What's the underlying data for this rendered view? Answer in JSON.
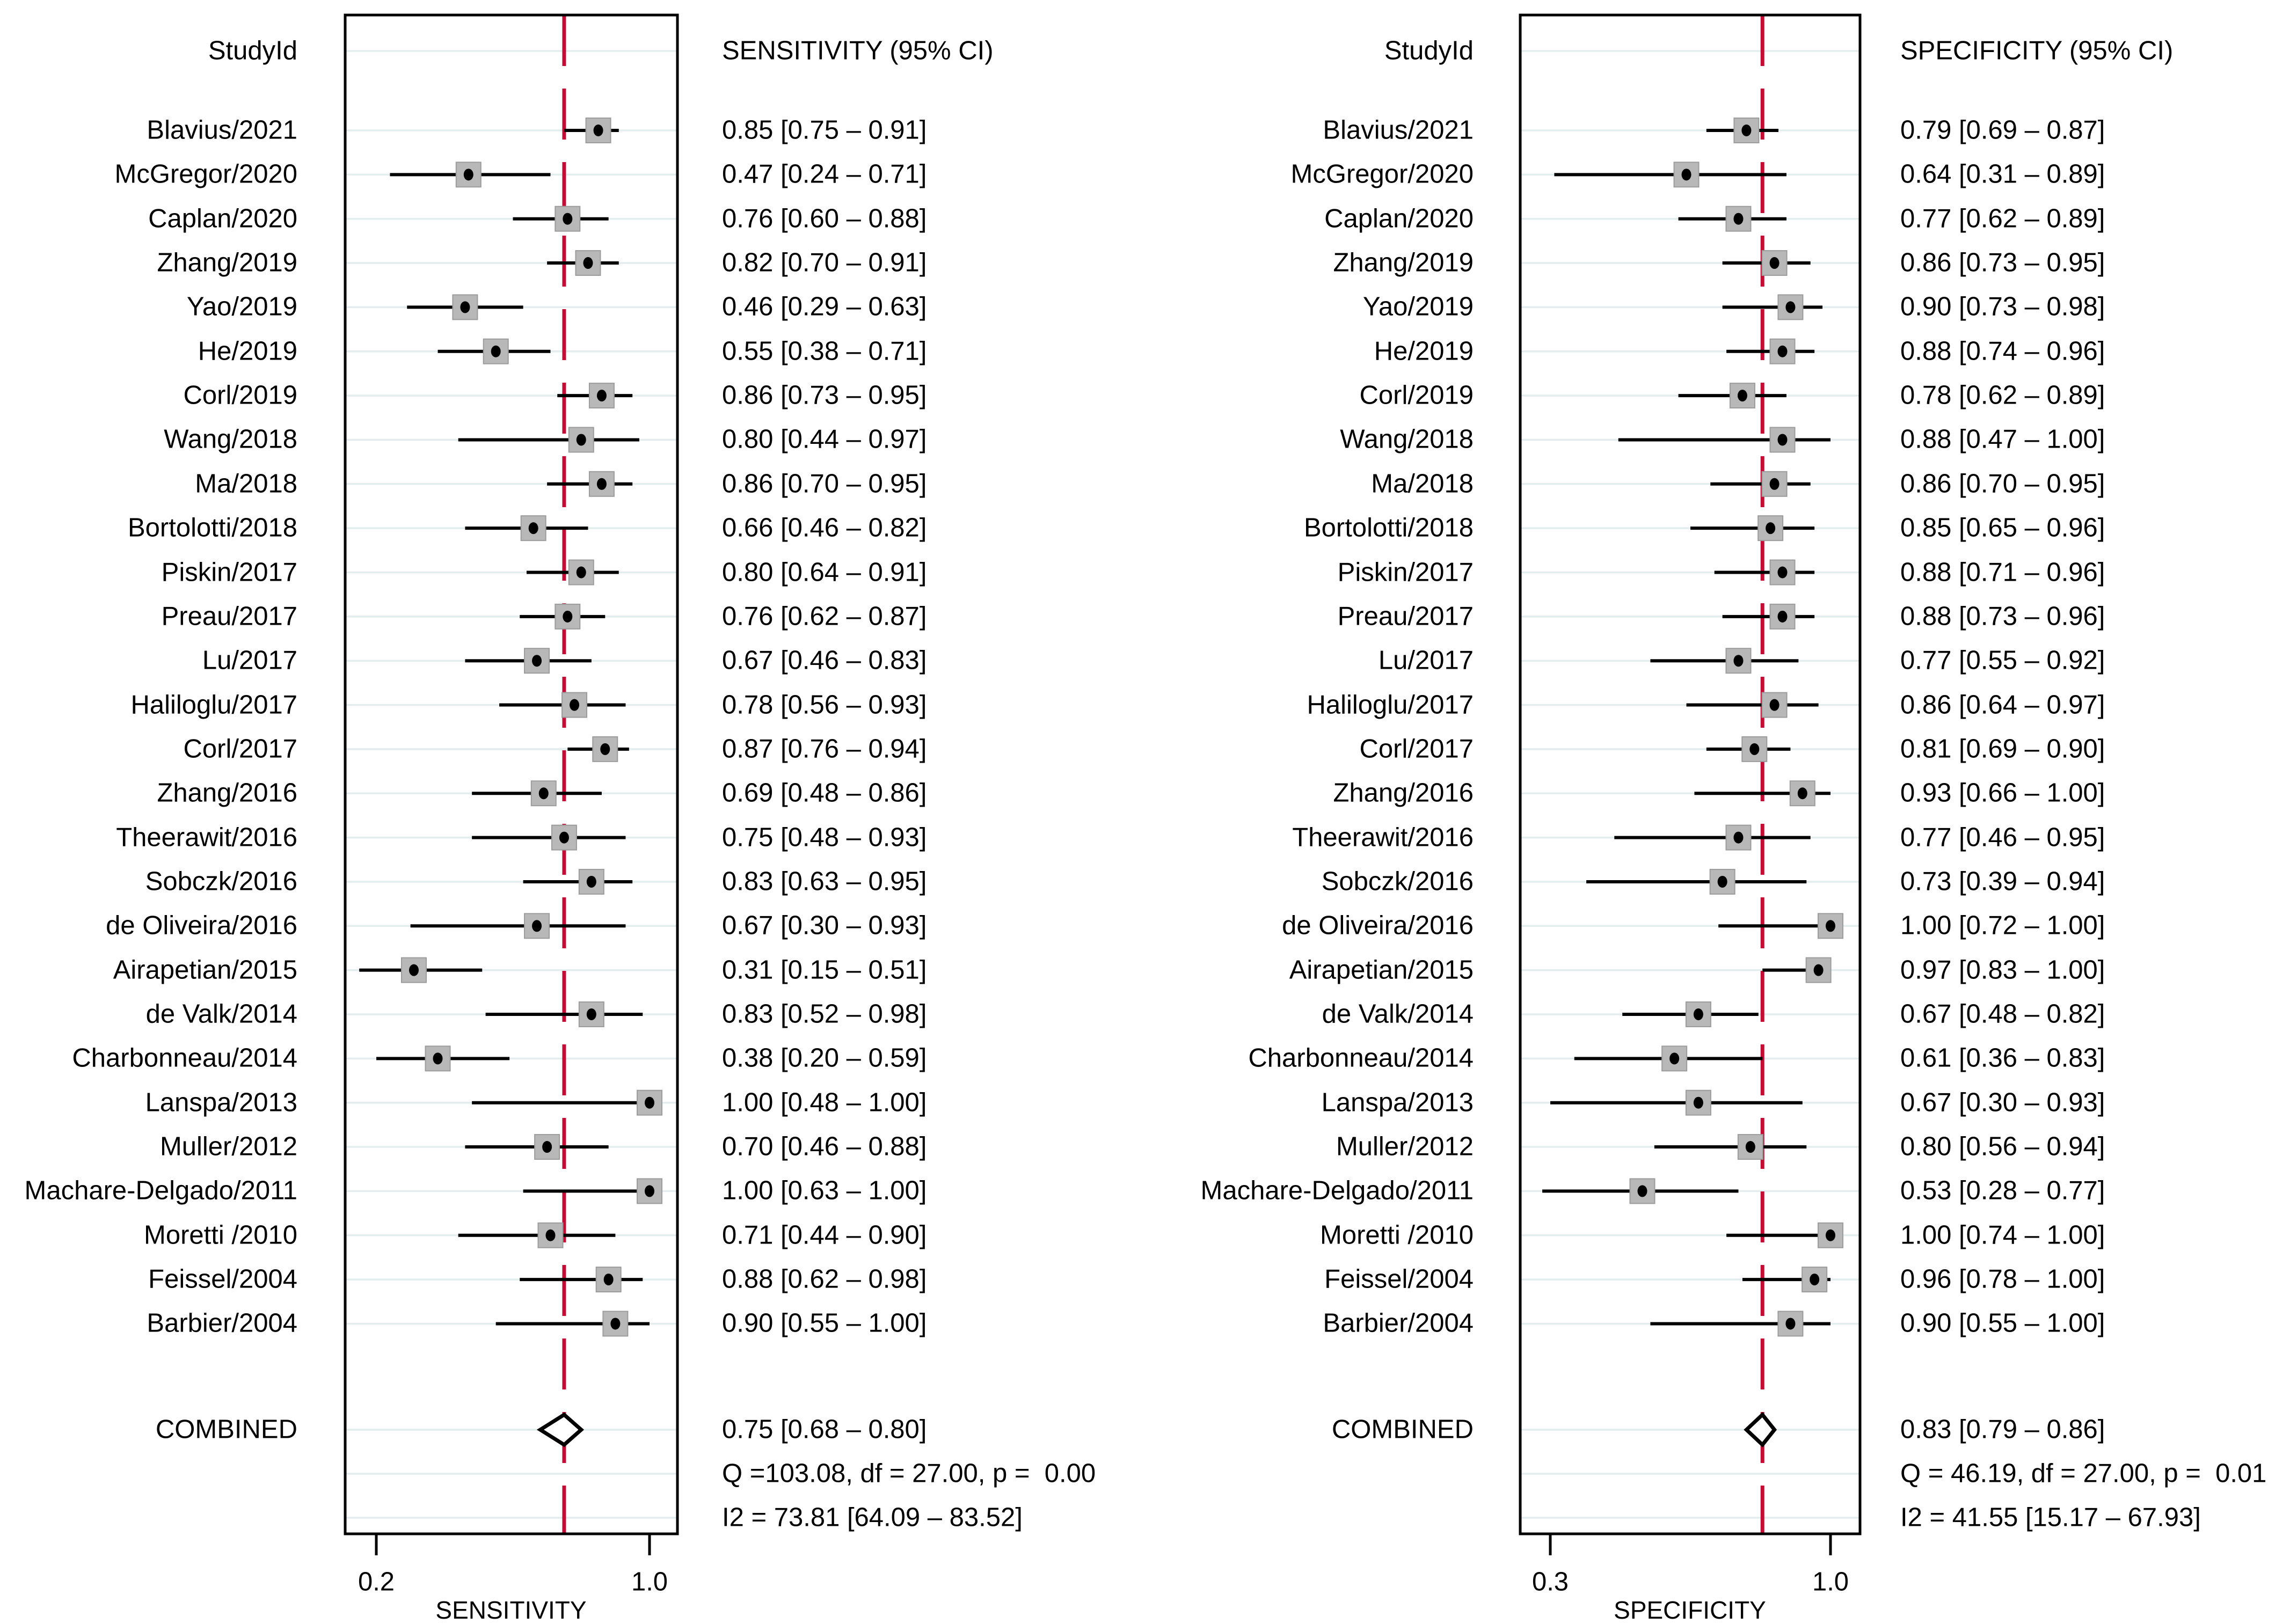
{
  "colors": {
    "reference_line": "#C50C34",
    "marker_fill": "#b8b8b8",
    "marker_edge": "#9c9c9c",
    "marker_dot": "#000000",
    "gridline": "#e3edee",
    "border": "#000000",
    "text": "#000000",
    "background": "#ffffff"
  },
  "chart_data": [
    {
      "type": "forest",
      "name": "sensitivity",
      "column_header": "StudyId",
      "value_header": "SENSITIVITY (95% CI)",
      "axis_label": "SENSITIVITY",
      "axis_ticks": [
        {
          "value": 0.2,
          "label": "0.2"
        },
        {
          "value": 1.0,
          "label": "1.0"
        }
      ],
      "xlim": [
        0.11,
        1.08
      ],
      "grid": true,
      "reference_line": 0.75,
      "studies": [
        {
          "id": "Blavius/2021",
          "estimate": 0.85,
          "ci_low": 0.75,
          "ci_high": 0.91,
          "label": "0.85 [0.75 – 0.91]"
        },
        {
          "id": "McGregor/2020",
          "estimate": 0.47,
          "ci_low": 0.24,
          "ci_high": 0.71,
          "label": "0.47 [0.24 – 0.71]"
        },
        {
          "id": "Caplan/2020",
          "estimate": 0.76,
          "ci_low": 0.6,
          "ci_high": 0.88,
          "label": "0.76 [0.60 – 0.88]"
        },
        {
          "id": "Zhang/2019",
          "estimate": 0.82,
          "ci_low": 0.7,
          "ci_high": 0.91,
          "label": "0.82 [0.70 – 0.91]"
        },
        {
          "id": "Yao/2019",
          "estimate": 0.46,
          "ci_low": 0.29,
          "ci_high": 0.63,
          "label": "0.46 [0.29 – 0.63]"
        },
        {
          "id": "He/2019",
          "estimate": 0.55,
          "ci_low": 0.38,
          "ci_high": 0.71,
          "label": "0.55 [0.38 – 0.71]"
        },
        {
          "id": "Corl/2019",
          "estimate": 0.86,
          "ci_low": 0.73,
          "ci_high": 0.95,
          "label": "0.86 [0.73 – 0.95]"
        },
        {
          "id": "Wang/2018",
          "estimate": 0.8,
          "ci_low": 0.44,
          "ci_high": 0.97,
          "label": "0.80 [0.44 – 0.97]"
        },
        {
          "id": "Ma/2018",
          "estimate": 0.86,
          "ci_low": 0.7,
          "ci_high": 0.95,
          "label": "0.86 [0.70 – 0.95]"
        },
        {
          "id": "Bortolotti/2018",
          "estimate": 0.66,
          "ci_low": 0.46,
          "ci_high": 0.82,
          "label": "0.66 [0.46 – 0.82]"
        },
        {
          "id": "Piskin/2017",
          "estimate": 0.8,
          "ci_low": 0.64,
          "ci_high": 0.91,
          "label": "0.80 [0.64 – 0.91]"
        },
        {
          "id": "Preau/2017",
          "estimate": 0.76,
          "ci_low": 0.62,
          "ci_high": 0.87,
          "label": "0.76 [0.62 – 0.87]"
        },
        {
          "id": "Lu/2017",
          "estimate": 0.67,
          "ci_low": 0.46,
          "ci_high": 0.83,
          "label": "0.67 [0.46 – 0.83]"
        },
        {
          "id": "Haliloglu/2017",
          "estimate": 0.78,
          "ci_low": 0.56,
          "ci_high": 0.93,
          "label": "0.78 [0.56 – 0.93]"
        },
        {
          "id": "Corl/2017",
          "estimate": 0.87,
          "ci_low": 0.76,
          "ci_high": 0.94,
          "label": "0.87 [0.76 – 0.94]"
        },
        {
          "id": "Zhang/2016",
          "estimate": 0.69,
          "ci_low": 0.48,
          "ci_high": 0.86,
          "label": "0.69 [0.48 – 0.86]"
        },
        {
          "id": "Theerawit/2016",
          "estimate": 0.75,
          "ci_low": 0.48,
          "ci_high": 0.93,
          "label": "0.75 [0.48 – 0.93]"
        },
        {
          "id": "Sobczk/2016",
          "estimate": 0.83,
          "ci_low": 0.63,
          "ci_high": 0.95,
          "label": "0.83 [0.63 – 0.95]"
        },
        {
          "id": "de Oliveira/2016",
          "estimate": 0.67,
          "ci_low": 0.3,
          "ci_high": 0.93,
          "label": "0.67 [0.30 – 0.93]"
        },
        {
          "id": "Airapetian/2015",
          "estimate": 0.31,
          "ci_low": 0.15,
          "ci_high": 0.51,
          "label": "0.31 [0.15 – 0.51]"
        },
        {
          "id": "de Valk/2014",
          "estimate": 0.83,
          "ci_low": 0.52,
          "ci_high": 0.98,
          "label": "0.83 [0.52 – 0.98]"
        },
        {
          "id": "Charbonneau/2014",
          "estimate": 0.38,
          "ci_low": 0.2,
          "ci_high": 0.59,
          "label": "0.38 [0.20 – 0.59]"
        },
        {
          "id": "Lanspa/2013",
          "estimate": 1.0,
          "ci_low": 0.48,
          "ci_high": 1.0,
          "label": "1.00 [0.48 – 1.00]"
        },
        {
          "id": "Muller/2012",
          "estimate": 0.7,
          "ci_low": 0.46,
          "ci_high": 0.88,
          "label": "0.70 [0.46 – 0.88]"
        },
        {
          "id": "Machare-Delgado/2011",
          "estimate": 1.0,
          "ci_low": 0.63,
          "ci_high": 1.0,
          "label": "1.00 [0.63 – 1.00]"
        },
        {
          "id": "Moretti /2010",
          "estimate": 0.71,
          "ci_low": 0.44,
          "ci_high": 0.9,
          "label": "0.71 [0.44 – 0.90]"
        },
        {
          "id": "Feissel/2004",
          "estimate": 0.88,
          "ci_low": 0.62,
          "ci_high": 0.98,
          "label": "0.88 [0.62 – 0.98]"
        },
        {
          "id": "Barbier/2004",
          "estimate": 0.9,
          "ci_low": 0.55,
          "ci_high": 1.0,
          "label": "0.90 [0.55 – 1.00]"
        }
      ],
      "combined": {
        "id": "COMBINED",
        "estimate": 0.75,
        "ci_low": 0.68,
        "ci_high": 0.8,
        "label": "0.75 [0.68 – 0.80]"
      },
      "heterogeneity": {
        "q_line": "Q =103.08, df = 27.00, p =  0.00",
        "i2_line": "I2 = 73.81 [64.09 – 83.52]"
      }
    },
    {
      "type": "forest",
      "name": "specificity",
      "column_header": "StudyId",
      "value_header": "SPECIFICITY (95% CI)",
      "axis_label": "SPECIFICITY",
      "axis_ticks": [
        {
          "value": 0.3,
          "label": "0.3"
        },
        {
          "value": 1.0,
          "label": "1.0"
        }
      ],
      "xlim": [
        0.22,
        1.08
      ],
      "grid": true,
      "reference_line": 0.83,
      "studies": [
        {
          "id": "Blavius/2021",
          "estimate": 0.79,
          "ci_low": 0.69,
          "ci_high": 0.87,
          "label": "0.79 [0.69 – 0.87]"
        },
        {
          "id": "McGregor/2020",
          "estimate": 0.64,
          "ci_low": 0.31,
          "ci_high": 0.89,
          "label": "0.64 [0.31 – 0.89]"
        },
        {
          "id": "Caplan/2020",
          "estimate": 0.77,
          "ci_low": 0.62,
          "ci_high": 0.89,
          "label": "0.77 [0.62 – 0.89]"
        },
        {
          "id": "Zhang/2019",
          "estimate": 0.86,
          "ci_low": 0.73,
          "ci_high": 0.95,
          "label": "0.86 [0.73 – 0.95]"
        },
        {
          "id": "Yao/2019",
          "estimate": 0.9,
          "ci_low": 0.73,
          "ci_high": 0.98,
          "label": "0.90 [0.73 – 0.98]"
        },
        {
          "id": "He/2019",
          "estimate": 0.88,
          "ci_low": 0.74,
          "ci_high": 0.96,
          "label": "0.88 [0.74 – 0.96]"
        },
        {
          "id": "Corl/2019",
          "estimate": 0.78,
          "ci_low": 0.62,
          "ci_high": 0.89,
          "label": "0.78 [0.62 – 0.89]"
        },
        {
          "id": "Wang/2018",
          "estimate": 0.88,
          "ci_low": 0.47,
          "ci_high": 1.0,
          "label": "0.88 [0.47 – 1.00]"
        },
        {
          "id": "Ma/2018",
          "estimate": 0.86,
          "ci_low": 0.7,
          "ci_high": 0.95,
          "label": "0.86 [0.70 – 0.95]"
        },
        {
          "id": "Bortolotti/2018",
          "estimate": 0.85,
          "ci_low": 0.65,
          "ci_high": 0.96,
          "label": "0.85 [0.65 – 0.96]"
        },
        {
          "id": "Piskin/2017",
          "estimate": 0.88,
          "ci_low": 0.71,
          "ci_high": 0.96,
          "label": "0.88 [0.71 – 0.96]"
        },
        {
          "id": "Preau/2017",
          "estimate": 0.88,
          "ci_low": 0.73,
          "ci_high": 0.96,
          "label": "0.88 [0.73 – 0.96]"
        },
        {
          "id": "Lu/2017",
          "estimate": 0.77,
          "ci_low": 0.55,
          "ci_high": 0.92,
          "label": "0.77 [0.55 – 0.92]"
        },
        {
          "id": "Haliloglu/2017",
          "estimate": 0.86,
          "ci_low": 0.64,
          "ci_high": 0.97,
          "label": "0.86 [0.64 – 0.97]"
        },
        {
          "id": "Corl/2017",
          "estimate": 0.81,
          "ci_low": 0.69,
          "ci_high": 0.9,
          "label": "0.81 [0.69 – 0.90]"
        },
        {
          "id": "Zhang/2016",
          "estimate": 0.93,
          "ci_low": 0.66,
          "ci_high": 1.0,
          "label": "0.93 [0.66 – 1.00]"
        },
        {
          "id": "Theerawit/2016",
          "estimate": 0.77,
          "ci_low": 0.46,
          "ci_high": 0.95,
          "label": "0.77 [0.46 – 0.95]"
        },
        {
          "id": "Sobczk/2016",
          "estimate": 0.73,
          "ci_low": 0.39,
          "ci_high": 0.94,
          "label": "0.73 [0.39 – 0.94]"
        },
        {
          "id": "de Oliveira/2016",
          "estimate": 1.0,
          "ci_low": 0.72,
          "ci_high": 1.0,
          "label": "1.00 [0.72 – 1.00]"
        },
        {
          "id": "Airapetian/2015",
          "estimate": 0.97,
          "ci_low": 0.83,
          "ci_high": 1.0,
          "label": "0.97 [0.83 – 1.00]"
        },
        {
          "id": "de Valk/2014",
          "estimate": 0.67,
          "ci_low": 0.48,
          "ci_high": 0.82,
          "label": "0.67 [0.48 – 0.82]"
        },
        {
          "id": "Charbonneau/2014",
          "estimate": 0.61,
          "ci_low": 0.36,
          "ci_high": 0.83,
          "label": "0.61 [0.36 – 0.83]"
        },
        {
          "id": "Lanspa/2013",
          "estimate": 0.67,
          "ci_low": 0.3,
          "ci_high": 0.93,
          "label": "0.67 [0.30 – 0.93]"
        },
        {
          "id": "Muller/2012",
          "estimate": 0.8,
          "ci_low": 0.56,
          "ci_high": 0.94,
          "label": "0.80 [0.56 – 0.94]"
        },
        {
          "id": "Machare-Delgado/2011",
          "estimate": 0.53,
          "ci_low": 0.28,
          "ci_high": 0.77,
          "label": "0.53 [0.28 – 0.77]"
        },
        {
          "id": "Moretti /2010",
          "estimate": 1.0,
          "ci_low": 0.74,
          "ci_high": 1.0,
          "label": "1.00 [0.74 – 1.00]"
        },
        {
          "id": "Feissel/2004",
          "estimate": 0.96,
          "ci_low": 0.78,
          "ci_high": 1.0,
          "label": "0.96 [0.78 – 1.00]"
        },
        {
          "id": "Barbier/2004",
          "estimate": 0.9,
          "ci_low": 0.55,
          "ci_high": 1.0,
          "label": "0.90 [0.55 – 1.00]"
        }
      ],
      "combined": {
        "id": "COMBINED",
        "estimate": 0.83,
        "ci_low": 0.79,
        "ci_high": 0.86,
        "label": "0.83 [0.79 – 0.86]"
      },
      "heterogeneity": {
        "q_line": "Q = 46.19, df = 27.00, p =  0.01",
        "i2_line": "I2 = 41.55 [15.17 – 67.93]"
      }
    }
  ]
}
